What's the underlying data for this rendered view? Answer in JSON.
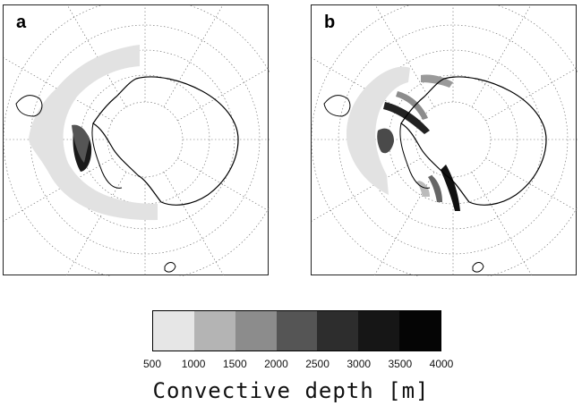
{
  "panels": [
    {
      "letter": "a"
    },
    {
      "letter": "b"
    }
  ],
  "colorbar": {
    "label": "Convective depth [m]",
    "ticks": [
      "500",
      "1000",
      "1500",
      "2000",
      "2500",
      "3000",
      "3500",
      "4000"
    ],
    "colors": [
      "#e6e6e6",
      "#b4b4b4",
      "#8c8c8c",
      "#555555",
      "#2d2d2d",
      "#161616",
      "#050505"
    ]
  }
}
